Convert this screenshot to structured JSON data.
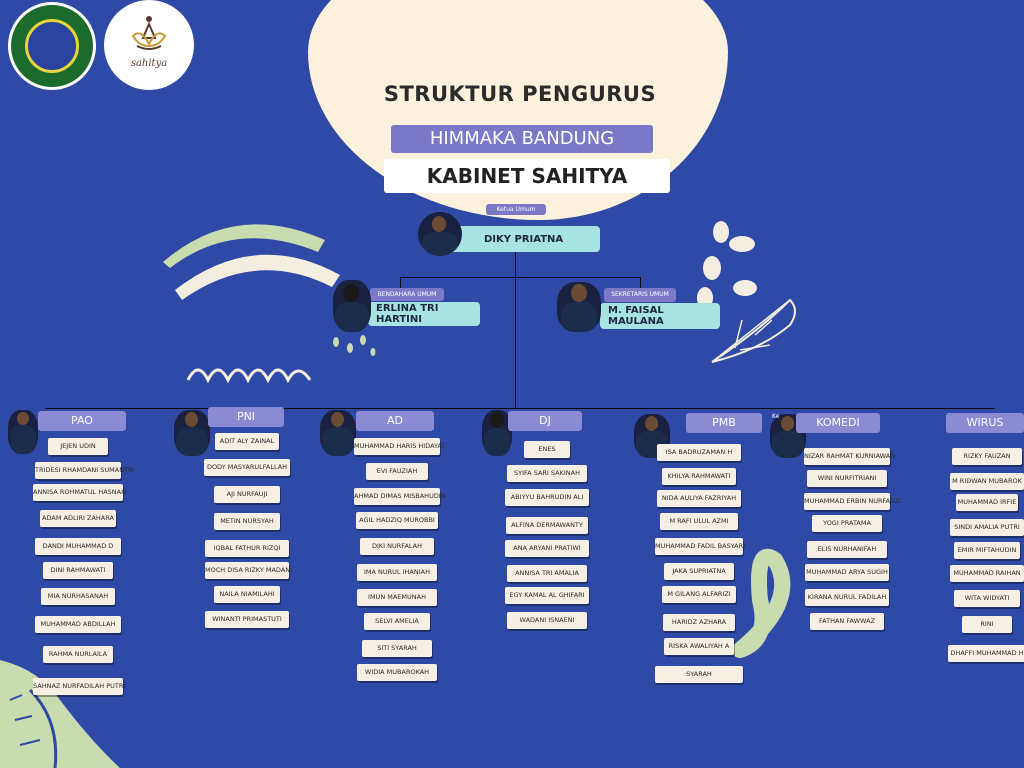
{
  "header": {
    "title": "STRUKTUR PENGURUS",
    "org": "HIMMAKA BANDUNG",
    "cabinet": "KABINET SAHITYA",
    "logo2_word": "sahitya"
  },
  "leaders": {
    "ketua": {
      "role": "Ketua Umum",
      "name": "DIKY PRIATNA"
    },
    "bendahara": {
      "role": "BENDAHARA UMUM",
      "name": "ERLINA TRI HARTINI"
    },
    "sekretaris": {
      "role": "SEKRETARIS UMUM",
      "name": "M. FAISAL MAULANA"
    }
  },
  "divisions": [
    {
      "name": "PAO",
      "members": [
        "JEJEN UDIN",
        "TRIDESI RHAMDANI SUMANTRI",
        "ANNISA ROHMATUL HASNAH",
        "ADAM ADLIRI ZAHARA",
        "DANDI MUHAMMAD D",
        "DINI RAHMAWATI",
        "MIA NURHASANAH",
        "MUHAMMAD ABDILLAH",
        "RAHMA NURLAILA",
        "SAHNAZ NURFADILAH PUTRI"
      ]
    },
    {
      "name": "PNI",
      "members": [
        "ADIT ALY ZAINAL",
        "DODY MASYARULFALLAH",
        "AJI NURFAUJI",
        "METIN NURSYAH",
        "IQBAL FATHUR RIZQI",
        "MOCH DISA RIZKY MADANI",
        "NAILA NIAMILAHI",
        "WINANTI PRIMASTUTI"
      ]
    },
    {
      "name": "AD",
      "members": [
        "MUHAMMAD HARIS HIDAYAT",
        "EVI FAUZIAH",
        "AHMAD DIMAS MISBAHUDIN",
        "AGIL HADZIQ MUROBBI",
        "DIKI NURFALAH",
        "IMA NURUL IHANIAH",
        "IMUN MAEMUNAH",
        "SELVI AMELIA",
        "SITI SYARAH",
        "WIDIA MUBAROKAH"
      ]
    },
    {
      "name": "DJ",
      "members": [
        "ENES",
        "SYIFA SARI SAKINAH",
        "ABIYYU BAHRUDIN ALI",
        "ALFINA DERMAWANTY",
        "ANA ARYANI PRATIWI",
        "ANNISA TRI AMALIA",
        "EGY KAMAL AL GHIFARI",
        "WADANI ISNAENI"
      ]
    },
    {
      "name": "PMB",
      "members": [
        "ISA BADRUZAMAN H",
        "KHILYA RAHMAWATI",
        "NIDA AULIYA FAZRIYAH",
        "M RAFI ULUL AZMI",
        "MUHAMMAD FADIL BASYARI",
        "JAKA SUPRIATNA",
        "M GILANG ALFARIZI",
        "HARIDZ AZHARA",
        "RISKA AWALIYAH A",
        "SYARAH"
      ]
    },
    {
      "name": "KOMEDI",
      "members": [
        "NIZAR RAHMAT KURNIAWAN",
        "WINI NURFITRIANI",
        "MUHAMMAD ERBIN NURFAUZI",
        "YOGI PRATAMA",
        "ELIS NURHANIFAH",
        "MUHAMMAD ARYA SUGIH",
        "KIRANA NURUL FADILAH",
        "FATHAN FAWWAZ"
      ]
    },
    {
      "name": "WIRUS",
      "members": [
        "RIZKY FAUZAN",
        "M RIDWAN MUBAROK",
        "MUHAMMAD IRFIE",
        "SINDI AMALIA PUTRI",
        "EMIR MIFTAHUDIN",
        "MUHAMMAD RAIHAN",
        "WITA WIDYATI",
        "RINI",
        "DHAFFI MUHAMMAD H"
      ]
    }
  ],
  "stray_text": "Ke",
  "colors": {
    "background": "#2f4aa6",
    "cream": "#fbf1dc",
    "lavender": "#7b78c7",
    "teal": "#a7e3e3",
    "sage": "#c9dcb0"
  }
}
